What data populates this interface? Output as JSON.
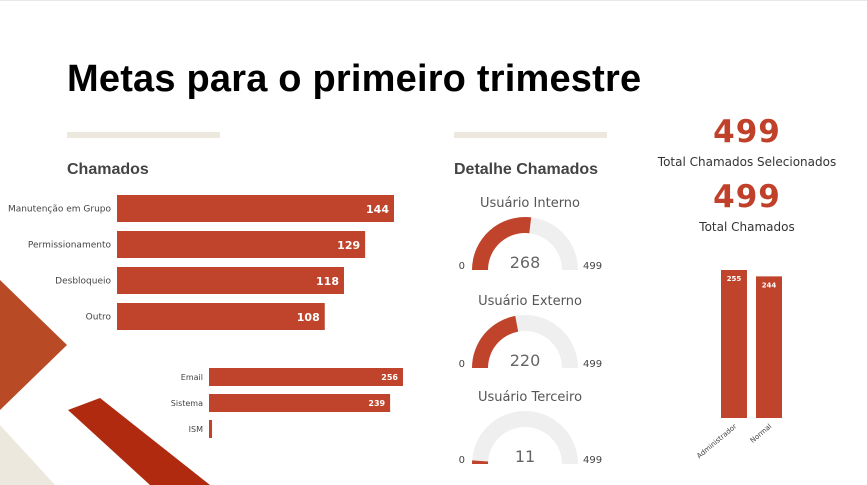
{
  "page": {
    "title": "Metas para o primeiro trimestre"
  },
  "chamados": {
    "title": "Chamados"
  },
  "detalhe": {
    "title": "Detalhe Chamados"
  },
  "kpis": [
    {
      "value": "499",
      "label": "Total Chamados Selecionados"
    },
    {
      "value": "499",
      "label": "Total Chamados"
    }
  ],
  "colors": {
    "bar": "#c0442c",
    "gauge_track": "#efefef",
    "rule": "#ece8dd",
    "deco_orange": "#b84a25",
    "deco_red": "#b02a10",
    "deco_beige": "#ece8dd"
  },
  "chart_data": [
    {
      "type": "bar",
      "orientation": "horizontal",
      "categories": [
        "Manutenção em Grupo",
        "Permissionamento",
        "Desbloqueio",
        "Outro"
      ],
      "values": [
        144,
        129,
        118,
        108
      ],
      "data_labels": [
        "144",
        "129",
        "118",
        "108"
      ]
    },
    {
      "type": "bar",
      "orientation": "horizontal",
      "categories": [
        "Email",
        "Sistema",
        "ISM"
      ],
      "values": [
        256,
        239,
        4
      ],
      "data_labels": [
        "256",
        "239",
        ""
      ]
    },
    {
      "type": "gauge",
      "title": "Usuário Interno",
      "value": 268,
      "min": 0,
      "max": 499,
      "value_label": "268",
      "min_label": "0",
      "max_label": "499"
    },
    {
      "type": "gauge",
      "title": "Usuário Externo",
      "value": 220,
      "min": 0,
      "max": 499,
      "value_label": "220",
      "min_label": "0",
      "max_label": "499"
    },
    {
      "type": "gauge",
      "title": "Usuário Terceiro",
      "value": 11,
      "min": 0,
      "max": 499,
      "value_label": "11",
      "min_label": "0",
      "max_label": "499"
    },
    {
      "type": "bar",
      "orientation": "vertical",
      "categories": [
        "Administrador",
        "Normal"
      ],
      "values": [
        255,
        244
      ],
      "data_labels": [
        "255",
        "244"
      ]
    }
  ]
}
